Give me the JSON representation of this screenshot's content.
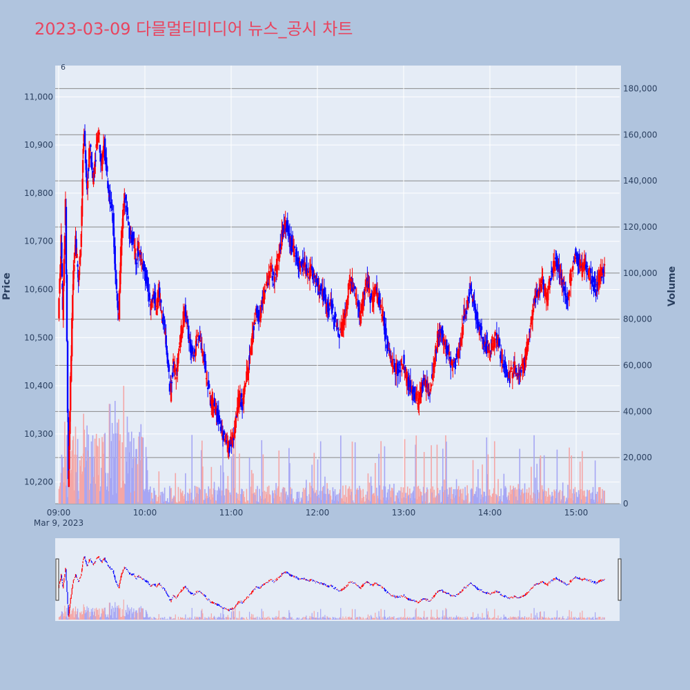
{
  "title": "2023-03-09 다믈멀티미디어 뉴스_공시 차트",
  "colors": {
    "up": "#ff0000",
    "down": "#0000ff",
    "vol_up": "#f4a6a6",
    "vol_down": "#a6a6f4",
    "plot_bg": "#e5ecf6",
    "page_bg": "#b0c4de",
    "title": "#e8455f"
  },
  "chart_data": {
    "type": "candlestick",
    "title": "2023-03-09 다믈멀티미디어 뉴스_공시 차트",
    "ylabel_left": "Price",
    "ylabel_right": "Volume",
    "x_date_label": "Mar 9, 2023",
    "x_tick_labels": [
      "09:00",
      "10:00",
      "11:00",
      "12:00",
      "13:00",
      "14:00",
      "15:00"
    ],
    "price_ticks": [
      10200,
      10300,
      10400,
      10500,
      10600,
      10700,
      10800,
      10900,
      11000
    ],
    "price_tick_labels": [
      "10,200",
      "10,300",
      "10,400",
      "10,500",
      "10,600",
      "10,700",
      "10,800",
      "10,900",
      "11,000"
    ],
    "volume_ticks": [
      0,
      20000,
      40000,
      60000,
      80000,
      100000,
      120000,
      140000,
      160000,
      180000
    ],
    "volume_tick_labels": [
      "0",
      "20,000",
      "40,000",
      "60,000",
      "80,000",
      "100,000",
      "120,000",
      "140,000",
      "160,000",
      "180,000"
    ],
    "price_range": [
      10155,
      11065
    ],
    "volume_range": [
      0,
      190000
    ],
    "top_annotation": "6",
    "time_range": [
      "09:00",
      "15:30"
    ],
    "price_path": [
      [
        "09:00",
        10540
      ],
      [
        "09:02",
        10700
      ],
      [
        "09:03",
        10550
      ],
      [
        "09:05",
        10780
      ],
      [
        "09:07",
        10200
      ],
      [
        "09:08",
        10350
      ],
      [
        "09:10",
        10600
      ],
      [
        "09:12",
        10700
      ],
      [
        "09:14",
        10620
      ],
      [
        "09:16",
        10720
      ],
      [
        "09:17",
        10880
      ],
      [
        "09:18",
        10920
      ],
      [
        "09:20",
        10820
      ],
      [
        "09:22",
        10900
      ],
      [
        "09:24",
        10830
      ],
      [
        "09:26",
        10880
      ],
      [
        "09:28",
        10930
      ],
      [
        "09:30",
        10860
      ],
      [
        "09:32",
        10900
      ],
      [
        "09:34",
        10830
      ],
      [
        "09:36",
        10780
      ],
      [
        "09:38",
        10750
      ],
      [
        "09:40",
        10620
      ],
      [
        "09:42",
        10540
      ],
      [
        "09:44",
        10720
      ],
      [
        "09:46",
        10790
      ],
      [
        "09:48",
        10760
      ],
      [
        "09:50",
        10700
      ],
      [
        "09:52",
        10710
      ],
      [
        "09:54",
        10660
      ],
      [
        "09:56",
        10690
      ],
      [
        "09:58",
        10650
      ],
      [
        "10:00",
        10640
      ],
      [
        "10:02",
        10610
      ],
      [
        "10:04",
        10560
      ],
      [
        "10:06",
        10600
      ],
      [
        "10:08",
        10560
      ],
      [
        "10:10",
        10590
      ],
      [
        "10:12",
        10550
      ],
      [
        "10:14",
        10520
      ],
      [
        "10:16",
        10450
      ],
      [
        "10:18",
        10380
      ],
      [
        "10:20",
        10450
      ],
      [
        "10:22",
        10420
      ],
      [
        "10:24",
        10480
      ],
      [
        "10:26",
        10520
      ],
      [
        "10:28",
        10560
      ],
      [
        "10:30",
        10520
      ],
      [
        "10:32",
        10480
      ],
      [
        "10:34",
        10460
      ],
      [
        "10:36",
        10490
      ],
      [
        "10:38",
        10500
      ],
      [
        "10:40",
        10470
      ],
      [
        "10:42",
        10440
      ],
      [
        "10:44",
        10400
      ],
      [
        "10:46",
        10370
      ],
      [
        "10:48",
        10360
      ],
      [
        "10:50",
        10340
      ],
      [
        "10:52",
        10330
      ],
      [
        "10:54",
        10300
      ],
      [
        "10:56",
        10290
      ],
      [
        "10:58",
        10270
      ],
      [
        "11:00",
        10280
      ],
      [
        "11:02",
        10300
      ],
      [
        "11:04",
        10340
      ],
      [
        "11:06",
        10380
      ],
      [
        "11:08",
        10360
      ],
      [
        "11:10",
        10400
      ],
      [
        "11:12",
        10440
      ],
      [
        "11:14",
        10480
      ],
      [
        "11:16",
        10520
      ],
      [
        "11:18",
        10560
      ],
      [
        "11:20",
        10540
      ],
      [
        "11:22",
        10580
      ],
      [
        "11:24",
        10600
      ],
      [
        "11:26",
        10620
      ],
      [
        "11:28",
        10640
      ],
      [
        "11:30",
        10620
      ],
      [
        "11:32",
        10650
      ],
      [
        "11:34",
        10680
      ],
      [
        "11:36",
        10720
      ],
      [
        "11:38",
        10740
      ],
      [
        "11:40",
        10710
      ],
      [
        "11:42",
        10690
      ],
      [
        "11:44",
        10680
      ],
      [
        "11:46",
        10660
      ],
      [
        "11:48",
        10650
      ],
      [
        "11:50",
        10660
      ],
      [
        "11:52",
        10640
      ],
      [
        "11:54",
        10630
      ],
      [
        "11:56",
        10650
      ],
      [
        "11:58",
        10620
      ],
      [
        "12:00",
        10610
      ],
      [
        "12:02",
        10600
      ],
      [
        "12:04",
        10590
      ],
      [
        "12:06",
        10580
      ],
      [
        "12:08",
        10560
      ],
      [
        "12:10",
        10570
      ],
      [
        "12:12",
        10540
      ],
      [
        "12:14",
        10520
      ],
      [
        "12:16",
        10510
      ],
      [
        "12:18",
        10530
      ],
      [
        "12:20",
        10560
      ],
      [
        "12:22",
        10600
      ],
      [
        "12:24",
        10620
      ],
      [
        "12:26",
        10600
      ],
      [
        "12:28",
        10570
      ],
      [
        "12:30",
        10540
      ],
      [
        "12:32",
        10580
      ],
      [
        "12:34",
        10620
      ],
      [
        "12:36",
        10600
      ],
      [
        "12:38",
        10570
      ],
      [
        "12:40",
        10600
      ],
      [
        "12:42",
        10580
      ],
      [
        "12:44",
        10560
      ],
      [
        "12:46",
        10540
      ],
      [
        "12:48",
        10500
      ],
      [
        "12:50",
        10470
      ],
      [
        "12:52",
        10450
      ],
      [
        "12:54",
        10440
      ],
      [
        "12:56",
        10430
      ],
      [
        "12:58",
        10440
      ],
      [
        "13:00",
        10450
      ],
      [
        "13:02",
        10420
      ],
      [
        "13:04",
        10400
      ],
      [
        "13:06",
        10390
      ],
      [
        "13:08",
        10380
      ],
      [
        "13:10",
        10370
      ],
      [
        "13:12",
        10390
      ],
      [
        "13:14",
        10410
      ],
      [
        "13:16",
        10400
      ],
      [
        "13:18",
        10390
      ],
      [
        "13:20",
        10420
      ],
      [
        "13:22",
        10460
      ],
      [
        "13:24",
        10500
      ],
      [
        "13:26",
        10520
      ],
      [
        "13:28",
        10490
      ],
      [
        "13:30",
        10480
      ],
      [
        "13:32",
        10460
      ],
      [
        "13:34",
        10440
      ],
      [
        "13:36",
        10450
      ],
      [
        "13:38",
        10470
      ],
      [
        "13:40",
        10500
      ],
      [
        "13:42",
        10540
      ],
      [
        "13:44",
        10560
      ],
      [
        "13:46",
        10600
      ],
      [
        "13:48",
        10580
      ],
      [
        "13:50",
        10560
      ],
      [
        "13:52",
        10520
      ],
      [
        "13:54",
        10510
      ],
      [
        "13:56",
        10490
      ],
      [
        "13:58",
        10480
      ],
      [
        "14:00",
        10470
      ],
      [
        "14:02",
        10480
      ],
      [
        "14:04",
        10500
      ],
      [
        "14:06",
        10490
      ],
      [
        "14:08",
        10460
      ],
      [
        "14:10",
        10440
      ],
      [
        "14:12",
        10430
      ],
      [
        "14:14",
        10420
      ],
      [
        "14:16",
        10430
      ],
      [
        "14:18",
        10440
      ],
      [
        "14:20",
        10420
      ],
      [
        "14:22",
        10430
      ],
      [
        "14:24",
        10450
      ],
      [
        "14:26",
        10480
      ],
      [
        "14:28",
        10520
      ],
      [
        "14:30",
        10560
      ],
      [
        "14:32",
        10580
      ],
      [
        "14:34",
        10600
      ],
      [
        "14:36",
        10620
      ],
      [
        "14:38",
        10600
      ],
      [
        "14:40",
        10580
      ],
      [
        "14:42",
        10620
      ],
      [
        "14:44",
        10640
      ],
      [
        "14:46",
        10660
      ],
      [
        "14:48",
        10640
      ],
      [
        "14:50",
        10620
      ],
      [
        "14:52",
        10600
      ],
      [
        "14:54",
        10580
      ],
      [
        "14:56",
        10620
      ],
      [
        "14:58",
        10650
      ],
      [
        "15:00",
        10680
      ],
      [
        "15:02",
        10660
      ],
      [
        "15:04",
        10640
      ],
      [
        "15:06",
        10660
      ],
      [
        "15:08",
        10640
      ],
      [
        "15:10",
        10630
      ],
      [
        "15:12",
        10620
      ],
      [
        "15:14",
        10600
      ],
      [
        "15:16",
        10620
      ],
      [
        "15:18",
        10640
      ],
      [
        "15:20",
        10640
      ]
    ]
  }
}
